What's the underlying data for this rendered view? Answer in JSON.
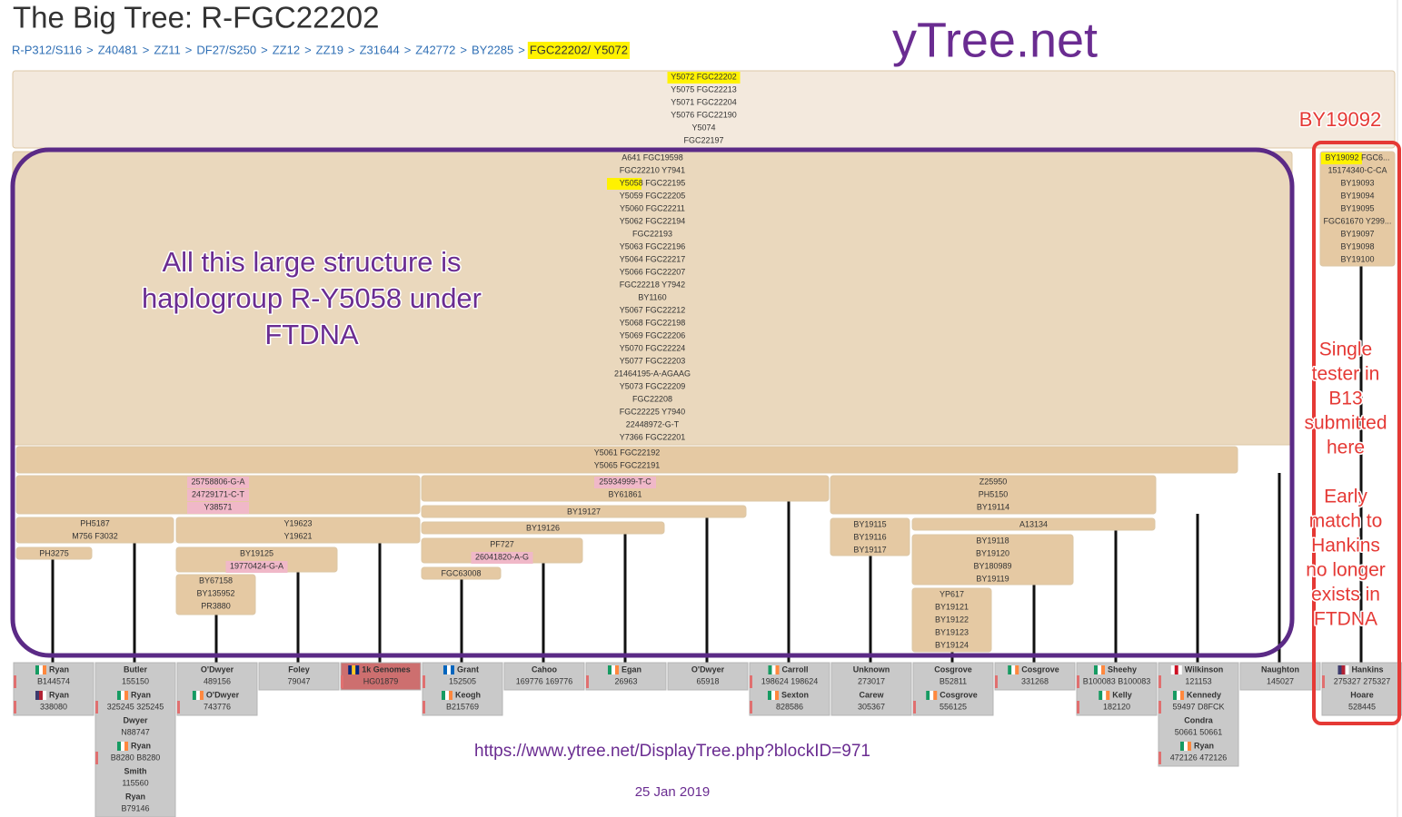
{
  "header": {
    "title": "The Big Tree: R-FGC22202",
    "breadcrumb": [
      "R-P312/S116",
      "Z40481",
      "ZZ11",
      "DF27/S250",
      "ZZ12",
      "ZZ19",
      "Z31644",
      "Z42772",
      "BY2285",
      "FGC22202/ Y5072"
    ],
    "separator": ">"
  },
  "watermark": "yTree.net",
  "tree": {
    "nodes": [
      {
        "snps": [
          "Y5072 FGC22202",
          "Y5075 FGC22213",
          "Y5071 FGC22204",
          "Y5076 FGC22190",
          "Y5074",
          "FGC22197"
        ]
      },
      {
        "snps": [
          "A641 FGC19598",
          "FGC22210 Y7941",
          "Y5058 FGC22195",
          "Y5059 FGC22205",
          "Y5060 FGC22211",
          "Y5062 FGC22194",
          "FGC22193",
          "Y5063 FGC22196",
          "Y5064 FGC22217",
          "Y5066 FGC22207",
          "FGC22218 Y7942",
          "BY1160",
          "Y5067 FGC22212",
          "Y5068 FGC22198",
          "Y5069 FGC22206",
          "Y5070 FGC22224",
          "Y5077 FGC22203",
          "21464195-A-AGAAG",
          "Y5073 FGC22209",
          "FGC22208",
          "FGC22225 Y7940",
          "22448972-G-T",
          "Y7366 FGC22201"
        ]
      },
      {
        "snps": [
          "BY19092 FGC6...",
          "15174340-C-CA",
          "BY19093",
          "BY19094",
          "BY19095",
          "FGC61670 Y299...",
          "BY19097",
          "BY19098",
          "BY19100"
        ]
      },
      {
        "snps": [
          "Y5061 FGC22192",
          "Y5065 FGC22191"
        ]
      },
      {
        "snps": [
          "25758806-G-A",
          "24729171-C-T",
          "Y38571"
        ]
      },
      {
        "snps": [
          "25934999-T-C",
          "BY61861"
        ]
      },
      {
        "snps": [
          "Z25950",
          "PH5150",
          "BY19114"
        ]
      },
      {
        "snps": [
          "PH5187",
          "M756 F3032"
        ]
      },
      {
        "snps": [
          "Y19623",
          "Y19621"
        ]
      },
      {
        "snps": [
          "PH3275"
        ]
      },
      {
        "snps": [
          "BY19125",
          "19770424-G-A"
        ]
      },
      {
        "snps": [
          "BY67158",
          "BY135952",
          "PR3880"
        ]
      },
      {
        "snps": [
          "BY19127"
        ]
      },
      {
        "snps": [
          "BY19126"
        ]
      },
      {
        "snps": [
          "PF727",
          "26041820-A-G"
        ]
      },
      {
        "snps": [
          "FGC63008"
        ]
      },
      {
        "snps": [
          "BY19115",
          "BY19116",
          "BY19117"
        ]
      },
      {
        "snps": [
          "A13134"
        ]
      },
      {
        "snps": [
          "BY19118",
          "BY19120",
          "BY180989",
          "BY19119"
        ]
      },
      {
        "snps": [
          "YP617",
          "BY19121",
          "BY19122",
          "BY19123",
          "BY19124"
        ]
      }
    ],
    "testers": [
      {
        "kits": [
          {
            "name": "Ryan",
            "id": "B144574"
          },
          {
            "name": "Ryan",
            "id": "338080"
          }
        ]
      },
      {
        "kits": [
          {
            "name": "Butler",
            "id": "155150"
          },
          {
            "name": "Ryan",
            "id": "325245 325245"
          },
          {
            "name": "Dwyer",
            "id": "N88747"
          },
          {
            "name": "Ryan",
            "id": "B8280 B8280"
          },
          {
            "name": "Smith",
            "id": "115560"
          },
          {
            "name": "Ryan",
            "id": "B79146"
          }
        ]
      },
      {
        "kits": [
          {
            "name": "O'Dwyer",
            "id": "489156"
          },
          {
            "name": "O'Dwyer",
            "id": "743776"
          }
        ]
      },
      {
        "kits": [
          {
            "name": "Foley",
            "id": "79047"
          }
        ]
      },
      {
        "kits": [
          {
            "name": "1k Genomes",
            "id": "HG01879"
          }
        ]
      },
      {
        "kits": [
          {
            "name": "Grant",
            "id": "152505"
          },
          {
            "name": "Keogh",
            "id": "B215769"
          }
        ]
      },
      {
        "kits": [
          {
            "name": "Cahoo",
            "id": "169776 169776"
          }
        ]
      },
      {
        "kits": [
          {
            "name": "Egan",
            "id": "26963"
          }
        ]
      },
      {
        "kits": [
          {
            "name": "O'Dwyer",
            "id": "65918"
          }
        ]
      },
      {
        "kits": [
          {
            "name": "Carroll",
            "id": "198624 198624"
          },
          {
            "name": "Sexton",
            "id": "828586"
          }
        ]
      },
      {
        "kits": [
          {
            "name": "Unknown",
            "id": "273017"
          },
          {
            "name": "Carew",
            "id": "305367"
          }
        ]
      },
      {
        "kits": [
          {
            "name": "Cosgrove",
            "id": "B52811"
          },
          {
            "name": "Cosgrove",
            "id": "556125"
          }
        ]
      },
      {
        "kits": [
          {
            "name": "Cosgrove",
            "id": "331268"
          }
        ]
      },
      {
        "kits": [
          {
            "name": "Sheehy",
            "id": "B100083 B100083"
          },
          {
            "name": "Kelly",
            "id": "182120"
          }
        ]
      },
      {
        "kits": [
          {
            "name": "Wilkinson",
            "id": "121153"
          },
          {
            "name": "Kennedy",
            "id": "59497 D8FCK"
          },
          {
            "name": "Condra",
            "id": "50661 50661"
          },
          {
            "name": "Ryan",
            "id": "472126 472126"
          }
        ]
      },
      {
        "kits": [
          {
            "name": "Naughton",
            "id": "145027"
          }
        ]
      },
      {
        "kits": [
          {
            "name": "Hankins",
            "id": "275327 275327"
          },
          {
            "name": "Hoare",
            "id": "528445"
          }
        ]
      }
    ]
  },
  "annotations": {
    "structure_note": [
      "All this large structure is",
      "haplogroup R-Y5058 under",
      "FTDNA"
    ],
    "branch_label": "BY19092",
    "side_note": [
      "Single",
      "tester in",
      "B13",
      "submitted",
      "here"
    ],
    "side_note_2": [
      "Early",
      "match to",
      "Hankins",
      "no longer",
      "exists in",
      "FTDNA"
    ],
    "url": "https://www.ytree.net/DisplayTree.php?blockID=971",
    "date": "25 Jan 2019"
  }
}
